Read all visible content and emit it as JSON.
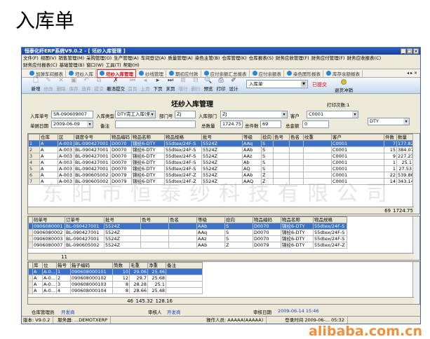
{
  "page_title": "入库单",
  "window": {
    "title": "恒泰化纤ERP系统V9.0.2 - [ 坯纱入库管理 ]",
    "controls": [
      "_",
      "□",
      "×"
    ]
  },
  "menu_row1": [
    "文件(F)",
    "视图(V)",
    "销售管理(M)",
    "采购管理(O)",
    "生产管理(A)",
    "车间登记(A)",
    "质量管理(A)",
    "染色主管(B)",
    "仓库管理(K)",
    "仓库报表(S)",
    "财务应收管理(F)",
    "财务应付管理(F)",
    "财务应收报表(C)"
  ],
  "menu_row2": [
    "财务应付报表(C)",
    "基础管理(B)",
    "窗口(W)",
    "工具(T)",
    "帮助(H)"
  ],
  "tabs": [
    {
      "label": "加弹车间报表"
    },
    {
      "label": "坯纱入库"
    },
    {
      "label": "坯纱入库管理",
      "active": true
    },
    {
      "label": "纱线管理"
    },
    {
      "label": "期初应付款"
    },
    {
      "label": "应付余额汇总报表"
    },
    {
      "label": "应付余额表"
    },
    {
      "label": "染色图形报表"
    },
    {
      "label": "库存余额报表"
    }
  ],
  "tab_nav": "◂ ▸ ×",
  "toolbar": [
    {
      "label": "新增",
      "icon": "new-icon",
      "glyph": "🗋",
      "enabled": true
    },
    {
      "label": "修改",
      "icon": "edit-icon",
      "glyph": "✎",
      "enabled": false
    },
    {
      "label": "删除",
      "icon": "delete-icon",
      "glyph": "✕",
      "enabled": false
    },
    {
      "label": "保存",
      "icon": "save-icon",
      "glyph": "▣",
      "enabled": false
    },
    {
      "label": "放弃",
      "icon": "discard-icon",
      "glyph": "↶",
      "enabled": false
    },
    {
      "label": "提交",
      "icon": "submit-icon",
      "glyph": "⧉",
      "enabled": false
    },
    {
      "label": "撤消提交",
      "icon": "unsubmit-icon",
      "glyph": "✗",
      "enabled": true,
      "wide": true
    },
    {
      "label": "首页",
      "icon": "first-page-icon",
      "glyph": "⏮",
      "enabled": false
    },
    {
      "label": "上页",
      "icon": "prev-page-icon",
      "glyph": "◂",
      "enabled": false
    },
    {
      "label": "下页",
      "icon": "next-page-icon",
      "glyph": "▸",
      "enabled": true
    },
    {
      "label": "末页",
      "icon": "last-page-icon",
      "glyph": "⏭",
      "enabled": true
    },
    {
      "label": "增行",
      "icon": "add-row-icon",
      "glyph": "⊞",
      "enabled": false
    },
    {
      "label": "删行",
      "icon": "delete-row-icon",
      "glyph": "⊟",
      "enabled": false
    },
    {
      "label": "预览",
      "icon": "preview-icon",
      "glyph": "🔍",
      "enabled": true
    },
    {
      "label": "打印",
      "icon": "print-icon",
      "glyph": "⎙",
      "enabled": true
    },
    {
      "label": "设计",
      "icon": "design-icon",
      "glyph": "✐",
      "enabled": true
    }
  ],
  "bill_type": "入库单",
  "submit_status": "已提交",
  "red_flush": "退货冲销",
  "form": {
    "title": "坯纱入库管理",
    "print_count": "打印次数:1",
    "bill_no_label": "入库单号",
    "bill_no": "SR-090609007",
    "in_type_label": "入库类型",
    "in_type": "DTY完工入库(条码",
    "dept_no_label": "部门号",
    "dept_no": "ZJ",
    "in_dept_label": "入库部门",
    "in_dept": "ZJ",
    "customer_label": "客户",
    "customer": "C0001",
    "date_label": "单据日期",
    "date": "2009-06-09",
    "remark_label": "备注",
    "remark": "",
    "total_qty_label": "总数量",
    "total_qty": "1724.75",
    "total_pieces_label": "总件数",
    "total_pieces": "69",
    "total_amount_label": "总金额",
    "total_amount": "0",
    "product_type": "DTY"
  },
  "main_grid": {
    "columns": [
      "",
      "仓库",
      "区",
      "调度令号",
      "物品编码",
      "物品名称",
      "物品规格",
      "批号",
      "等级",
      "捻向",
      "色号",
      "色名",
      "纹重",
      "客户",
      "件数",
      "数量"
    ],
    "rows": [
      [
        "1",
        "A",
        "A-003",
        "BL-090427001",
        "D0070",
        "锦纶6-DTY",
        "55dtex/24F-S",
        "5524Z",
        "AAq",
        "S",
        "",
        "",
        "",
        "C0001",
        "7",
        "177.82"
      ],
      [
        "2",
        "A",
        "A-003",
        "BL-090427001",
        "D0070",
        "锦纶6-DTY",
        "55dtex/24F-S",
        "5524Z",
        "AAb",
        "S",
        "",
        "",
        "",
        "C0001",
        "15",
        "384.07"
      ],
      [
        "3",
        "A",
        "A-003",
        "BL-090427001",
        "D0070",
        "锦纶6-DTY",
        "55dtex/24F-S",
        "5524Z",
        "AAz",
        "S",
        "",
        "",
        "",
        "C0001",
        "9",
        "227.23"
      ],
      [
        "4",
        "A",
        "A-003",
        "BL-090427001",
        "D0070",
        "锦纶6-DTY",
        "55dtex/24F-S",
        "5524Z",
        "Ab",
        "S",
        "",
        "",
        "",
        "C0001",
        "1",
        "25.1"
      ],
      [
        "5",
        "A",
        "A-003",
        "BL-090427001",
        "D0070",
        "锦纶6-DTY",
        "55dtex/24F-S",
        "5524Z",
        "AQ",
        "S",
        "",
        "",
        "",
        "C0001",
        "1",
        "27.53"
      ],
      [
        "6",
        "A",
        "A-003",
        "BL-090605002",
        "D0079",
        "锦纶6-DTY",
        "55dtex/24F-Z",
        "5524Z",
        "AAb",
        "Z",
        "",
        "",
        "",
        "C0001",
        "22",
        "539.86"
      ],
      [
        "7",
        "A",
        "A-003",
        "BL-090605002",
        "D0079",
        "锦纶6-DTY",
        "55dtex/24F-Z",
        "5524Z",
        "AAQ",
        "Z",
        "",
        "",
        "",
        "C0001",
        "14",
        "343.14"
      ]
    ],
    "total_pieces": "69",
    "total_qty": "1724.75"
  },
  "barcode_grid": {
    "columns": [
      "",
      "码单号",
      "订单号",
      "批号",
      "色号",
      "色名",
      "等级",
      "捻向",
      "物品编码",
      "物品名称",
      "物品规格"
    ],
    "rows": [
      [
        "",
        "0906080001",
        "BL-090427001",
        "5524Z",
        "",
        "",
        "AAb",
        "S",
        "D0070",
        "锦纶6-DTY",
        "55dtex/24F-S"
      ],
      [
        "",
        "0906080002",
        "BL-090427001",
        "5524Z",
        "",
        "",
        "AAq",
        "S",
        "D0070",
        "锦纶6-DTY",
        "55dtex/24F-S"
      ],
      [
        "",
        "0906080003",
        "BL-090427001",
        "5524Z",
        "",
        "",
        "AAz",
        "S",
        "D0070",
        "锦纶6-DTY",
        "55dtex/24F-S"
      ],
      [
        "",
        "0906080007",
        "BL-090605002",
        "5524Z",
        "",
        "",
        "AAb",
        "Z",
        "D0079",
        "锦纶6-DTY",
        "55dtex/24F-Z"
      ]
    ],
    "count": "11"
  },
  "box_grid": {
    "columns": [
      "",
      "库",
      "位",
      "箱号",
      "箱子编码",
      "筒数",
      "毛重",
      "净重",
      "备注"
    ],
    "rows": [
      [
        "",
        "A",
        "A-0...",
        "1",
        "090608000101",
        "10",
        "29.06",
        "25.46",
        ""
      ],
      [
        "",
        "A",
        "A-0...",
        "2",
        "090608000102",
        "12",
        "29.7",
        "25.68",
        ""
      ],
      [
        "",
        "A",
        "A-0...",
        "3",
        "090608000103",
        "8",
        "28.28",
        "25.1",
        ""
      ],
      [
        "",
        "A",
        "A-0...",
        "4",
        "090608000104",
        "8",
        "28.66",
        "25.48",
        ""
      ]
    ],
    "totals": {
      "cones": "46",
      "gross": "145.32",
      "net": "128.16"
    }
  },
  "sign": {
    "keeper_label": "仓库管理员",
    "keeper": "开发商",
    "auditor_label": "审核人",
    "auditor": "开发商",
    "audit_date_label": "审核日期",
    "audit_date": "2009-06-14 15:46"
  },
  "status": {
    "version": "版本: V9.0.2",
    "server": "服务器: ...DEMOTXERP",
    "operator": "操作人员: AAAAA(AAAAA)",
    "time": "登录时间 2009-06-... 05:32"
  },
  "watermark": "东阳市恒泰纱科技有限公司",
  "alibaba": "alibaba.com.cn",
  "colors": {
    "title_bar": "#1a3f99",
    "selection": "#3a72c9",
    "submitted": "#e00000",
    "link": "#1a3cc8",
    "watermark_orange": "#f07c1a"
  }
}
